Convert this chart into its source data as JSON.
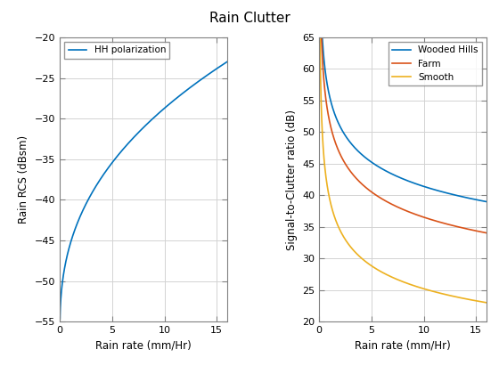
{
  "title": "Rain Clutter",
  "ax1": {
    "xlabel": "Rain rate (mm/Hr)",
    "ylabel": "Rain RCS (dBsm)",
    "xlim": [
      0,
      16
    ],
    "ylim": [
      -55,
      -20
    ],
    "yticks": [
      -55,
      -50,
      -45,
      -40,
      -35,
      -30,
      -25,
      -20
    ],
    "xticks": [
      0,
      5,
      10,
      15
    ],
    "line_color": "#0072BD",
    "legend_label": "HH polarization"
  },
  "ax2": {
    "xlabel": "Rain rate (mm/Hr)",
    "ylabel": "Signal-to-Clutter ratio (dB)",
    "xlim": [
      0,
      16
    ],
    "ylim": [
      20,
      65
    ],
    "yticks": [
      20,
      25,
      30,
      35,
      40,
      45,
      50,
      55,
      60,
      65
    ],
    "xticks": [
      0,
      5,
      10,
      15
    ],
    "lines": [
      {
        "label": "Wooded Hills",
        "color": "#0072BD"
      },
      {
        "label": "Farm",
        "color": "#D95319"
      },
      {
        "label": "Smooth",
        "color": "#EDB120"
      }
    ]
  },
  "background_color": "#FFFFFF",
  "grid_color": "#D3D3D3",
  "figure_width": 5.6,
  "figure_height": 4.2,
  "dpi": 100
}
